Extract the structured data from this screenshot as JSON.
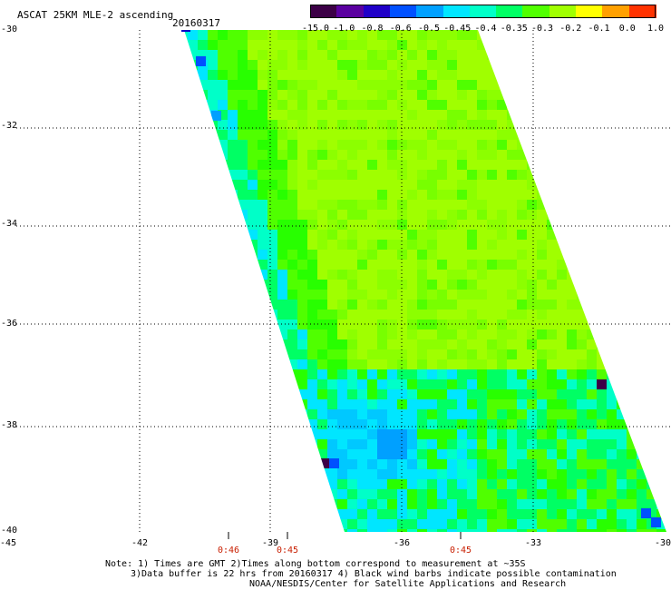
{
  "header": {
    "title": "ASCAT 25KM MLE-2 ascending",
    "date": "20160317"
  },
  "colorbar": {
    "labels": [
      "-15.0",
      "-1.0",
      "-0.8",
      "-0.6",
      "-0.5",
      "-0.45",
      "-0.4",
      "-0.35",
      "-0.3",
      "-0.2",
      "-0.1",
      "0.0",
      "1.0"
    ],
    "colors": [
      "#3c0046",
      "#5a00a0",
      "#2000c8",
      "#0050ff",
      "#00a0ff",
      "#00e6ff",
      "#00ffc8",
      "#00ff64",
      "#50ff00",
      "#a0ff00",
      "#ffff00",
      "#ffa000",
      "#ff3200"
    ]
  },
  "axes": {
    "lat_labels": [
      "-30",
      "-32",
      "-34",
      "-36",
      "-38",
      "-40"
    ],
    "lon_labels": [
      "-45",
      "-42",
      "-39",
      "-36",
      "-33",
      "-30"
    ]
  },
  "swath_times": [
    "0:46",
    "0:45",
    "0:45"
  ],
  "notes": [
    "Note: 1) Times are GMT 2)Times along bottom correspond to measurement at ~35S",
    "3)Data buffer is 22 hrs from 20160317 4) Black wind barbs indicate possible contamination",
    "NOAA/NESDIS/Center for Satellite Applications and Research"
  ]
}
